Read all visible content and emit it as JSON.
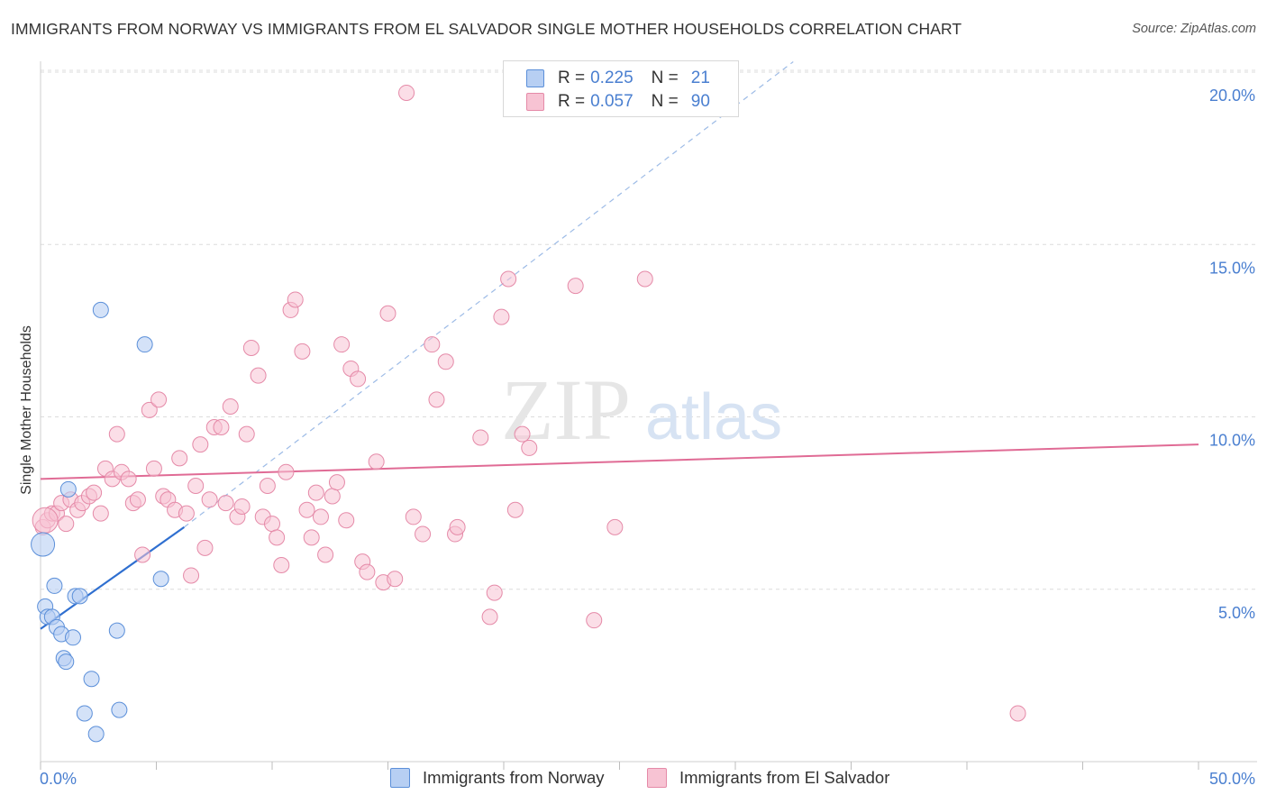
{
  "title": "IMMIGRANTS FROM NORWAY VS IMMIGRANTS FROM EL SALVADOR SINGLE MOTHER HOUSEHOLDS CORRELATION CHART",
  "source": "Source: ZipAtlas.com",
  "watermark": {
    "zip": "ZIP",
    "atlas": "atlas"
  },
  "colors": {
    "norway_fill": "#b7cff3",
    "norway_stroke": "#5b8fd9",
    "norway_line": "#2f6fd0",
    "salvador_fill": "#f7c3d3",
    "salvador_stroke": "#e58aa8",
    "salvador_line": "#e06b95",
    "grid": "#dcdcdc",
    "axis_text": "#4a7fd0"
  },
  "legend": {
    "norway": {
      "r_label": "R =",
      "r_value": "0.225",
      "n_label": "N =",
      "n_value": "21"
    },
    "salvador": {
      "r_label": "R =",
      "r_value": "0.057",
      "n_label": "N =",
      "n_value": "90"
    }
  },
  "bottom_legend": {
    "norway": "Immigrants from Norway",
    "salvador": "Immigrants from El Salvador"
  },
  "chart_data": {
    "type": "scatter",
    "title": "IMMIGRANTS FROM NORWAY VS IMMIGRANTS FROM EL SALVADOR SINGLE MOTHER HOUSEHOLDS CORRELATION CHART",
    "xlabel": "",
    "ylabel": "Single Mother Households",
    "xlim": [
      0,
      50
    ],
    "ylim": [
      0,
      20.7
    ],
    "x_tick_labels": [
      "0.0%",
      "50.0%"
    ],
    "y_ticks": [
      {
        "value": 5,
        "label": "5.0%"
      },
      {
        "value": 10,
        "label": "10.0%"
      },
      {
        "value": 15,
        "label": "15.0%"
      },
      {
        "value": 20,
        "label": "20.0%"
      }
    ],
    "series": [
      {
        "name": "Immigrants from Norway",
        "r": 0.225,
        "n": 21,
        "trend_solid": {
          "x": [
            0,
            6.2
          ],
          "y": [
            3.85,
            6.8
          ]
        },
        "trend_dashed": {
          "x": [
            6.2,
            32.5
          ],
          "y": [
            6.8,
            20.3
          ]
        },
        "points": [
          [
            0.1,
            6.3
          ],
          [
            0.2,
            4.5
          ],
          [
            0.3,
            4.2
          ],
          [
            0.5,
            4.2
          ],
          [
            0.6,
            5.1
          ],
          [
            0.7,
            3.9
          ],
          [
            0.9,
            3.7
          ],
          [
            1.0,
            3.0
          ],
          [
            1.1,
            2.9
          ],
          [
            1.2,
            7.9
          ],
          [
            1.4,
            3.6
          ],
          [
            1.5,
            4.8
          ],
          [
            1.7,
            4.8
          ],
          [
            1.9,
            1.4
          ],
          [
            2.2,
            2.4
          ],
          [
            2.4,
            0.8
          ],
          [
            2.6,
            13.1
          ],
          [
            3.3,
            3.8
          ],
          [
            3.4,
            1.5
          ],
          [
            4.5,
            12.1
          ],
          [
            5.2,
            5.3
          ]
        ]
      },
      {
        "name": "Immigrants from El Salvador",
        "r": 0.057,
        "n": 90,
        "trend": {
          "x": [
            0,
            50
          ],
          "y": [
            8.2,
            9.2
          ]
        },
        "points": [
          [
            0.1,
            6.8
          ],
          [
            0.3,
            7.0
          ],
          [
            0.5,
            7.2
          ],
          [
            0.7,
            7.2
          ],
          [
            0.9,
            7.5
          ],
          [
            1.1,
            6.9
          ],
          [
            1.3,
            7.6
          ],
          [
            1.6,
            7.3
          ],
          [
            1.8,
            7.5
          ],
          [
            2.1,
            7.7
          ],
          [
            2.3,
            7.8
          ],
          [
            2.6,
            7.2
          ],
          [
            2.8,
            8.5
          ],
          [
            3.1,
            8.2
          ],
          [
            3.3,
            9.5
          ],
          [
            3.5,
            8.4
          ],
          [
            3.8,
            8.2
          ],
          [
            4.0,
            7.5
          ],
          [
            4.2,
            7.6
          ],
          [
            4.4,
            6.0
          ],
          [
            4.7,
            10.2
          ],
          [
            4.9,
            8.5
          ],
          [
            5.1,
            10.5
          ],
          [
            5.3,
            7.7
          ],
          [
            5.5,
            7.6
          ],
          [
            5.8,
            7.3
          ],
          [
            6.0,
            8.8
          ],
          [
            6.3,
            7.2
          ],
          [
            6.5,
            5.4
          ],
          [
            6.7,
            8.0
          ],
          [
            6.9,
            9.2
          ],
          [
            7.1,
            6.2
          ],
          [
            7.3,
            7.6
          ],
          [
            7.5,
            9.7
          ],
          [
            7.8,
            9.7
          ],
          [
            8.0,
            7.5
          ],
          [
            8.2,
            10.3
          ],
          [
            8.5,
            7.1
          ],
          [
            8.7,
            7.4
          ],
          [
            8.9,
            9.5
          ],
          [
            9.1,
            12.0
          ],
          [
            9.4,
            11.2
          ],
          [
            9.6,
            7.1
          ],
          [
            9.8,
            8.0
          ],
          [
            10.0,
            6.9
          ],
          [
            10.2,
            6.5
          ],
          [
            10.4,
            5.7
          ],
          [
            10.6,
            8.4
          ],
          [
            10.8,
            13.1
          ],
          [
            11.0,
            13.4
          ],
          [
            11.3,
            11.9
          ],
          [
            11.5,
            7.3
          ],
          [
            11.7,
            6.5
          ],
          [
            11.9,
            7.8
          ],
          [
            12.1,
            7.1
          ],
          [
            12.3,
            6.0
          ],
          [
            12.6,
            7.7
          ],
          [
            12.8,
            8.1
          ],
          [
            13.0,
            12.1
          ],
          [
            13.2,
            7.0
          ],
          [
            13.4,
            11.4
          ],
          [
            13.7,
            11.1
          ],
          [
            13.9,
            5.8
          ],
          [
            14.1,
            5.5
          ],
          [
            14.5,
            8.7
          ],
          [
            14.8,
            5.2
          ],
          [
            15.0,
            13.0
          ],
          [
            15.3,
            5.3
          ],
          [
            15.8,
            19.4
          ],
          [
            16.1,
            7.1
          ],
          [
            16.5,
            6.6
          ],
          [
            16.9,
            12.1
          ],
          [
            17.1,
            10.5
          ],
          [
            17.5,
            11.6
          ],
          [
            17.9,
            6.6
          ],
          [
            18.0,
            6.8
          ],
          [
            19.0,
            9.4
          ],
          [
            19.4,
            4.2
          ],
          [
            19.6,
            4.9
          ],
          [
            19.9,
            12.9
          ],
          [
            20.2,
            14.0
          ],
          [
            20.5,
            7.3
          ],
          [
            20.8,
            9.5
          ],
          [
            21.1,
            9.1
          ],
          [
            23.1,
            13.8
          ],
          [
            23.9,
            4.1
          ],
          [
            24.8,
            6.8
          ],
          [
            26.1,
            14.0
          ],
          [
            42.2,
            1.4
          ],
          [
            0.2,
            7.0
          ]
        ]
      }
    ]
  }
}
